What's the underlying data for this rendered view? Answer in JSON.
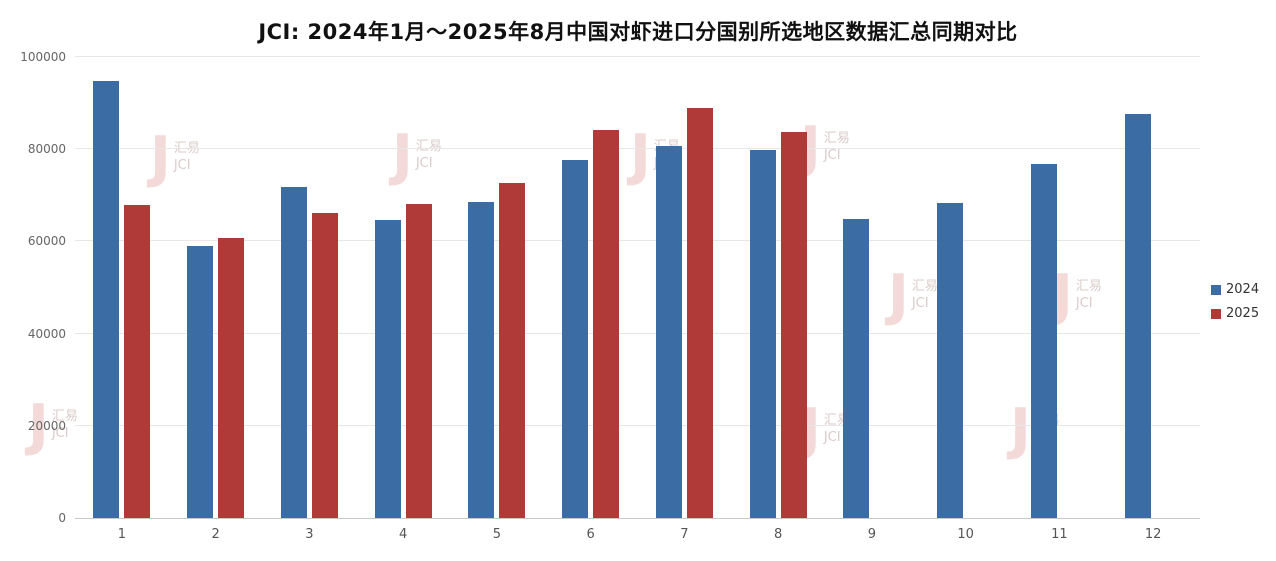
{
  "title": "JCI: 2024年1月～2025年8月中国对虾进口分国别所选地区数据汇总同期对比",
  "watermark": {
    "logo": "J",
    "line1": "汇易",
    "line2": "JCI"
  },
  "chart_data": {
    "type": "bar",
    "title": "JCI: 2024年1月～2025年8月中国对虾进口分国别所选地区数据汇总同期对比",
    "categories": [
      "1",
      "2",
      "3",
      "4",
      "5",
      "6",
      "7",
      "8",
      "9",
      "10",
      "11",
      "12"
    ],
    "series": [
      {
        "name": "2024",
        "color": "#3b6ca3",
        "values": [
          94800,
          58900,
          71800,
          64600,
          68600,
          77600,
          80800,
          79900,
          64900,
          68400,
          76900,
          87700
        ]
      },
      {
        "name": "2025",
        "color": "#b03a38",
        "values": [
          67900,
          60800,
          66200,
          68200,
          72700,
          84200,
          89000,
          83800,
          null,
          null,
          null,
          null
        ]
      }
    ],
    "xlabel": "",
    "ylabel": "",
    "ylim": [
      0,
      100000
    ],
    "yticks": [
      0,
      20000,
      40000,
      60000,
      80000,
      100000
    ],
    "grid": true,
    "legend_position": "right"
  }
}
